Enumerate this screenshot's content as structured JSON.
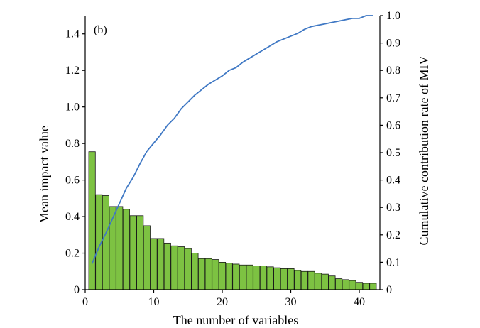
{
  "chart_data": {
    "type": "bar",
    "panel_label": "(b)",
    "xlabel": "The number of variables",
    "ylabel_left": "Mean impact value",
    "ylabel_right": "Cumulative contribution rate of MIV",
    "xlim": [
      0,
      43
    ],
    "ylim_left": [
      0,
      1.5
    ],
    "ylim_right": [
      0,
      1.0
    ],
    "x_ticks": [
      0,
      10,
      20,
      30,
      40
    ],
    "y_left_ticks": [
      "0",
      "0.2",
      "0.4",
      "0.6",
      "0.8",
      "1.0",
      "1.2",
      "1.4"
    ],
    "y_right_ticks": [
      "0",
      "0.1",
      "0.2",
      "0.3",
      "0.4",
      "0.5",
      "0.6",
      "0.7",
      "0.8",
      "0.9",
      "1.0"
    ],
    "grid": false,
    "series": [
      {
        "type": "bar",
        "axis": "left",
        "color": "#7dc242",
        "edge_color": "#1a1a1a",
        "x": [
          1,
          2,
          3,
          4,
          5,
          6,
          7,
          8,
          9,
          10,
          11,
          12,
          13,
          14,
          15,
          16,
          17,
          18,
          19,
          20,
          21,
          22,
          23,
          24,
          25,
          26,
          27,
          28,
          29,
          30,
          31,
          32,
          33,
          34,
          35,
          36,
          37,
          38,
          39,
          40,
          41,
          42
        ],
        "values": [
          0.755,
          0.52,
          0.515,
          0.455,
          0.455,
          0.44,
          0.405,
          0.405,
          0.35,
          0.28,
          0.28,
          0.255,
          0.24,
          0.235,
          0.225,
          0.2,
          0.17,
          0.17,
          0.165,
          0.15,
          0.145,
          0.14,
          0.135,
          0.135,
          0.13,
          0.13,
          0.125,
          0.12,
          0.115,
          0.115,
          0.105,
          0.1,
          0.1,
          0.09,
          0.085,
          0.075,
          0.06,
          0.055,
          0.05,
          0.04,
          0.035,
          0.035
        ]
      },
      {
        "type": "line",
        "axis": "right",
        "color": "#3f78c4",
        "x": [
          1,
          2,
          3,
          4,
          5,
          6,
          7,
          8,
          9,
          10,
          11,
          12,
          13,
          14,
          15,
          16,
          17,
          18,
          19,
          20,
          21,
          22,
          23,
          24,
          25,
          26,
          27,
          28,
          29,
          30,
          31,
          32,
          33,
          34,
          35,
          36,
          37,
          38,
          39,
          40,
          41,
          42
        ],
        "values": [
          0.095,
          0.155,
          0.205,
          0.26,
          0.315,
          0.37,
          0.41,
          0.46,
          0.505,
          0.535,
          0.565,
          0.6,
          0.625,
          0.66,
          0.685,
          0.71,
          0.73,
          0.75,
          0.765,
          0.78,
          0.8,
          0.81,
          0.83,
          0.845,
          0.86,
          0.875,
          0.89,
          0.905,
          0.915,
          0.925,
          0.935,
          0.95,
          0.96,
          0.965,
          0.97,
          0.975,
          0.98,
          0.985,
          0.99,
          0.99,
          1.0,
          1.0
        ]
      }
    ]
  }
}
